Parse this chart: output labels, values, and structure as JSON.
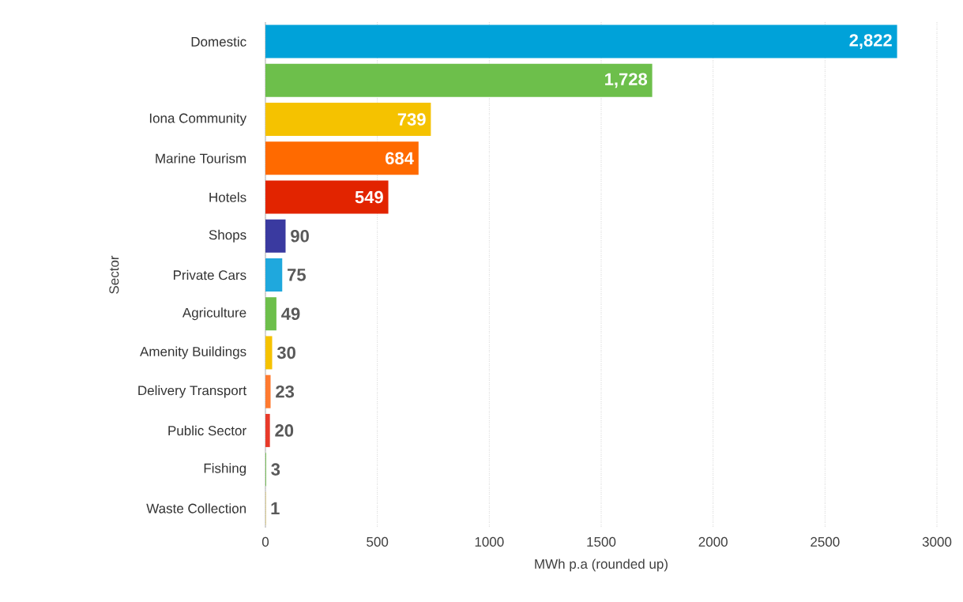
{
  "chart_data": {
    "type": "bar",
    "orientation": "horizontal",
    "xlabel": "MWh p.a (rounded up)",
    "ylabel": "Sector",
    "categories": [
      "Domestic",
      null,
      "Iona Community",
      "Marine Tourism",
      "Hotels",
      "Shops",
      "Private Cars",
      "Agriculture",
      "Amenity Buildings",
      "Delivery Transport",
      "Public Sector",
      "Fishing",
      "Waste Collection"
    ],
    "values": [
      2822,
      1728,
      739,
      684,
      549,
      90,
      75,
      49,
      30,
      23,
      20,
      3,
      1
    ],
    "value_labels": [
      "2,822",
      "1,728",
      "739",
      "684",
      "549",
      "90",
      "75",
      "49",
      "30",
      "23",
      "20",
      "3",
      "1"
    ],
    "colors": [
      "#00a2d9",
      "#6dbf4b",
      "#f5c200",
      "#ff6a00",
      "#e22400",
      "#3a3aa0",
      "#1fa8dd",
      "#6dbf4b",
      "#f5c200",
      "#ff7a30",
      "#e83a2a",
      "#6dbf4b",
      "#f5c200"
    ],
    "xlim": [
      0,
      3000
    ],
    "xticks": [
      0,
      500,
      1000,
      1500,
      2000,
      2500,
      3000
    ],
    "grid": "x"
  }
}
